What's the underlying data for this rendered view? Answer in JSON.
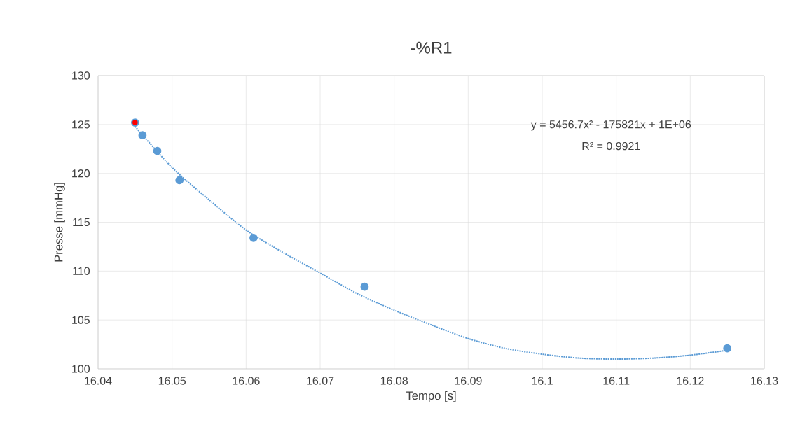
{
  "chart_data": {
    "type": "scatter",
    "title": "-%R1",
    "xlabel": "Tempo [s]",
    "ylabel": "Presse [mmHg]",
    "xlim": [
      16.04,
      16.13
    ],
    "xticks": [
      16.04,
      16.05,
      16.06,
      16.07,
      16.08,
      16.09,
      16.1,
      16.11,
      16.12,
      16.13
    ],
    "ylim": [
      100,
      130
    ],
    "yticks": [
      100,
      105,
      110,
      115,
      120,
      125,
      130
    ],
    "grid": true,
    "marker": "circle",
    "annotations": [
      "y = 5456.7x² - 175821x + 1E+06",
      "R² = 0.9921"
    ],
    "series": [
      {
        "color": "#5b9bd5",
        "colors": [
          "#ff0000",
          "#5b9bd5",
          "#5b9bd5",
          "#5b9bd5",
          "#5b9bd5",
          "#5b9bd5",
          "#5b9bd5"
        ],
        "x": [
          16.045,
          16.046,
          16.048,
          16.051,
          16.061,
          16.076,
          16.125
        ],
        "values": [
          125.2,
          123.9,
          122.3,
          119.3,
          113.4,
          108.4,
          102.1
        ]
      },
      {
        "type": "line",
        "line_style": "dotted",
        "marker": "none",
        "color": "#5b9bd5",
        "x": [
          16.045,
          16.05,
          16.055,
          16.06,
          16.065,
          16.07,
          16.075,
          16.08,
          16.085,
          16.09,
          16.095,
          16.1,
          16.105,
          16.11,
          16.115,
          16.12,
          16.125
        ],
        "values": [
          124.8,
          120.6,
          117.3,
          114.2,
          111.9,
          109.8,
          107.7,
          106.0,
          104.5,
          103.1,
          102.1,
          101.5,
          101.1,
          101.0,
          101.1,
          101.4,
          101.9
        ]
      }
    ]
  }
}
